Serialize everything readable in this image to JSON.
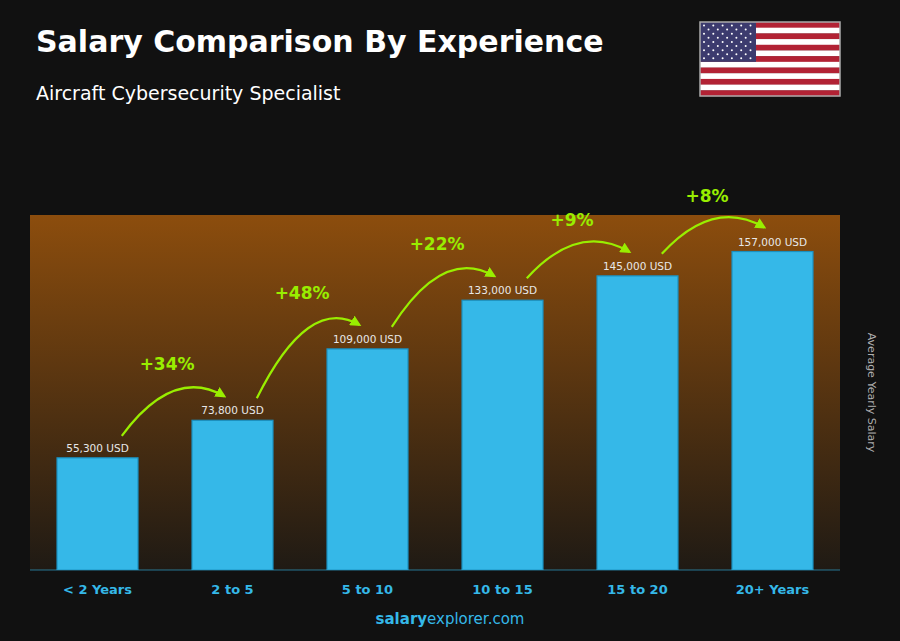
{
  "chart_data": {
    "type": "bar",
    "title": "Salary Comparison By Experience",
    "subtitle": "Aircraft Cybersecurity Specialist",
    "ylabel": "Average Yearly Salary",
    "footer": [
      "salary",
      "explorer.com"
    ],
    "categories": [
      "< 2 Years",
      "2 to 5",
      "5 to 10",
      "10 to 15",
      "15 to 20",
      "20+ Years"
    ],
    "values": [
      55300,
      73800,
      109000,
      133000,
      145000,
      157000
    ],
    "value_labels": [
      "55,300 USD",
      "73,800 USD",
      "109,000 USD",
      "133,000 USD",
      "145,000 USD",
      "157,000 USD"
    ],
    "data_labels": true,
    "annotations": [
      {
        "text": "+34%",
        "color": "#99ee00"
      },
      {
        "text": "+48%",
        "color": "#99ee00"
      },
      {
        "text": "+22%",
        "color": "#99ee00"
      },
      {
        "text": "+9%",
        "color": "#99ee00"
      },
      {
        "text": "+8%",
        "color": "#99ee00"
      }
    ],
    "color": "#35b8e8",
    "ylim": [
      0,
      175000
    ],
    "tick_labels": "x",
    "grid": false
  }
}
